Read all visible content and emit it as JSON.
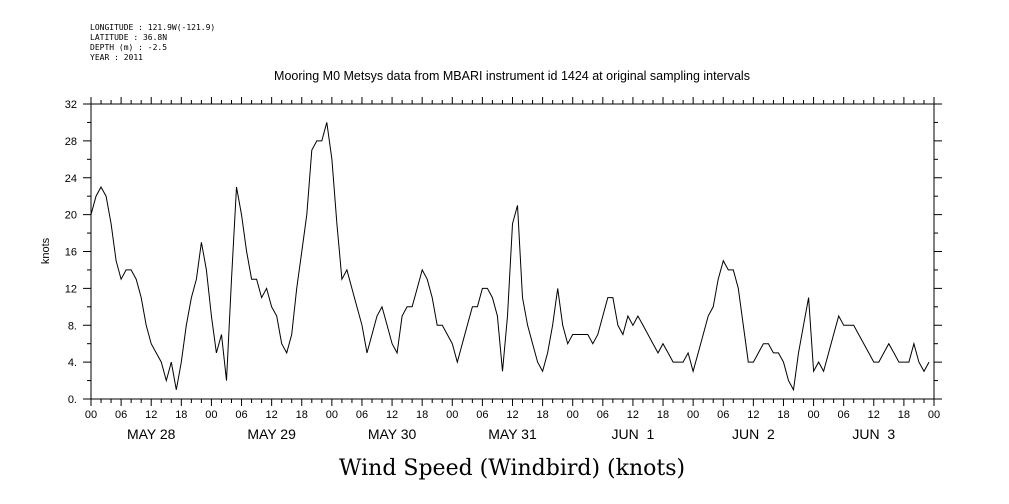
{
  "meta_lines": [
    "LONGITUDE : 121.9W(-121.9)",
    "LATITUDE : 36.8N",
    "DEPTH (m) : -2.5",
    "YEAR : 2011"
  ],
  "chart_data": {
    "type": "line",
    "title": "Mooring M0 Metsys data from MBARI instrument id 1424 at original sampling intervals",
    "xlabel": "Wind Speed (Windbird) (knots)",
    "ylabel": "knots",
    "ylim": [
      0,
      32
    ],
    "xlim_hours": [
      0,
      168
    ],
    "yticks": [
      0,
      4,
      8,
      12,
      16,
      20,
      24,
      28,
      32
    ],
    "ytick_labels": [
      "0.",
      "4.",
      "8.",
      "12",
      "16",
      "20",
      "24",
      "28",
      "32"
    ],
    "hour_tick_labels": [
      "00",
      "06",
      "12",
      "18",
      "00",
      "06",
      "12",
      "18",
      "00",
      "06",
      "12",
      "18",
      "00",
      "06",
      "12",
      "18",
      "00",
      "06",
      "12",
      "18",
      "00",
      "06",
      "12",
      "18",
      "00",
      "06",
      "12",
      "18",
      "00"
    ],
    "day_labels": [
      "MAY 28",
      "MAY 29",
      "MAY 30",
      "MAY 31",
      "JUN  1",
      "JUN  2",
      "JUN  3"
    ],
    "grid": false,
    "series": [
      {
        "x": [
          0,
          1,
          2,
          3,
          4,
          5,
          6,
          7,
          8,
          9,
          10,
          11,
          12,
          13,
          14,
          15,
          16,
          17,
          18,
          19,
          20,
          21,
          22,
          23,
          24,
          25,
          26,
          27,
          28,
          29,
          30,
          31,
          32,
          33,
          34,
          35,
          36,
          37,
          38,
          39,
          40,
          41,
          42,
          43,
          44,
          45,
          46,
          47,
          48,
          49,
          50,
          51,
          52,
          53,
          54,
          55,
          56,
          57,
          58,
          59,
          60,
          61,
          62,
          63,
          64,
          65,
          66,
          67,
          68,
          69,
          70,
          71,
          72,
          73,
          74,
          75,
          76,
          77,
          78,
          79,
          80,
          81,
          82,
          83,
          84,
          85,
          86,
          87,
          88,
          89,
          90,
          91,
          92,
          93,
          94,
          95,
          96,
          97,
          98,
          99,
          100,
          101,
          102,
          103,
          104,
          105,
          106,
          107,
          108,
          109,
          110,
          111,
          112,
          113,
          114,
          115,
          116,
          117,
          118,
          119,
          120,
          121,
          122,
          123,
          124,
          125,
          126,
          127,
          128,
          129,
          130,
          131,
          132,
          133,
          134,
          135,
          136,
          137,
          138,
          139,
          140,
          141,
          142,
          143,
          144,
          145,
          146,
          147,
          148,
          149,
          150,
          151,
          152,
          153,
          154,
          155,
          156,
          157,
          158,
          159,
          160,
          161,
          162,
          163,
          164,
          165,
          166,
          167
        ],
        "values": [
          20,
          22,
          23,
          22,
          19,
          15,
          13,
          14,
          14,
          13,
          11,
          8,
          6,
          5,
          4,
          2,
          4,
          1,
          4,
          8,
          11,
          13,
          17,
          14,
          9,
          5,
          7,
          2,
          13,
          23,
          20,
          16,
          13,
          13,
          11,
          12,
          10,
          9,
          6,
          5,
          7,
          12,
          16,
          20,
          27,
          28,
          28,
          30,
          26,
          19,
          13,
          14,
          12,
          10,
          8,
          5,
          7,
          9,
          10,
          8,
          6,
          5,
          9,
          10,
          10,
          12,
          14,
          13,
          11,
          8,
          8,
          7,
          6,
          4,
          6,
          8,
          10,
          10,
          12,
          12,
          11,
          9,
          3,
          9,
          19,
          21,
          11,
          8,
          6,
          4,
          3,
          5,
          8,
          12,
          8,
          6,
          7,
          7,
          7,
          7,
          6,
          7,
          9,
          11,
          11,
          8,
          7,
          9,
          8,
          9,
          8,
          7,
          6,
          5,
          6,
          5,
          4,
          4,
          4,
          5,
          3,
          5,
          7,
          9,
          10,
          13,
          15,
          14,
          14,
          12,
          8,
          4,
          4,
          5,
          6,
          6,
          5,
          5,
          4,
          2,
          1,
          5,
          8,
          11,
          3,
          4,
          3,
          5,
          7,
          9,
          8,
          8,
          8,
          7,
          6,
          5,
          4,
          4,
          5,
          6,
          5,
          4,
          4,
          4,
          6,
          4,
          3,
          4
        ],
        "color": "#000000"
      }
    ]
  }
}
